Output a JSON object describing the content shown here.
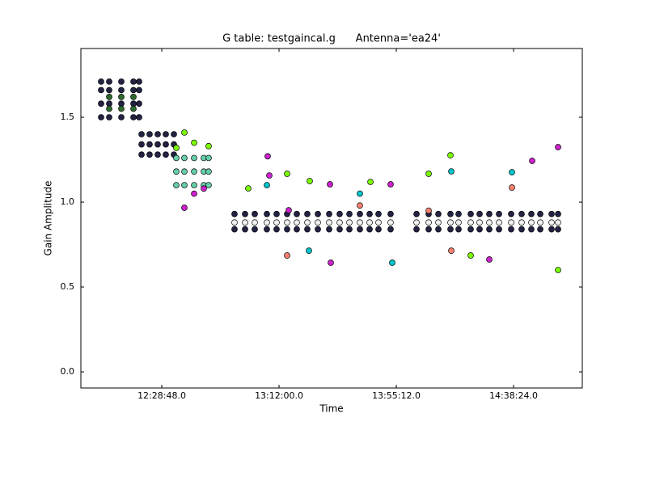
{
  "chart_data": {
    "type": "scatter",
    "title": "G table: testgaincal.g      Antenna='ea24'",
    "x_label": "Time",
    "y_label": "Gain Amplitude",
    "xlim": [
      43140,
      54223
    ],
    "ylim": [
      -0.095,
      1.905
    ],
    "xticks": [
      {
        "value": 44928,
        "label": "12:28:48.0"
      },
      {
        "value": 47520,
        "label": "13:12:00.0"
      },
      {
        "value": 50112,
        "label": "13:55:12.0"
      },
      {
        "value": 52704,
        "label": "14:38:24.0"
      }
    ],
    "yticks": [
      {
        "value": 0,
        "label": "0.0"
      },
      {
        "value": 0.5,
        "label": "0.5"
      },
      {
        "value": 1,
        "label": "1.0"
      },
      {
        "value": 1.5,
        "label": "1.5"
      }
    ],
    "series": [
      {
        "color": "#222244",
        "x": [
          43587,
          43766,
          44034,
          44302,
          44427,
          43587,
          43766,
          44034,
          44302,
          44427,
          43587,
          43766,
          44034,
          44302,
          44427,
          43587,
          43766,
          44034,
          44302,
          44427,
          44481,
          44659,
          44838,
          45017,
          45196,
          44481,
          44659,
          44838,
          45017,
          45196,
          44481,
          44659,
          44838,
          45017,
          45196,
          46536,
          46769,
          46983,
          47251,
          47466,
          47698,
          47913,
          48145,
          48378,
          48628,
          48860,
          49075,
          49307,
          49522,
          49718,
          49986,
          50559,
          50827,
          51041,
          51309,
          51488,
          51756,
          51953,
          52167,
          52382,
          52650,
          52882,
          53097,
          53294,
          53544,
          53687,
          46536,
          46769,
          46983,
          47251,
          47466,
          47698,
          47913,
          48145,
          48378,
          48628,
          48860,
          49075,
          49307,
          49522,
          49718,
          49986,
          50559,
          50827,
          51041,
          51309,
          51488,
          51756,
          51953,
          52167,
          52382,
          52650,
          52882,
          53097,
          53294,
          53544,
          53687
        ],
        "values": [
          1.5,
          1.5,
          1.5,
          1.5,
          1.5,
          1.58,
          1.58,
          1.58,
          1.58,
          1.58,
          1.66,
          1.66,
          1.66,
          1.66,
          1.66,
          1.71,
          1.71,
          1.71,
          1.71,
          1.71,
          1.28,
          1.28,
          1.28,
          1.28,
          1.28,
          1.34,
          1.34,
          1.34,
          1.34,
          1.34,
          1.4,
          1.4,
          1.4,
          1.4,
          1.4,
          0.84,
          0.84,
          0.84,
          0.84,
          0.84,
          0.84,
          0.84,
          0.84,
          0.84,
          0.84,
          0.84,
          0.84,
          0.84,
          0.84,
          0.84,
          0.84,
          0.84,
          0.84,
          0.84,
          0.84,
          0.84,
          0.84,
          0.84,
          0.84,
          0.84,
          0.84,
          0.84,
          0.84,
          0.84,
          0.84,
          0.84,
          0.93,
          0.93,
          0.93,
          0.93,
          0.93,
          0.93,
          0.93,
          0.93,
          0.93,
          0.93,
          0.93,
          0.93,
          0.93,
          0.93,
          0.93,
          0.93,
          0.93,
          0.93,
          0.93,
          0.93,
          0.93,
          0.93,
          0.93,
          0.93,
          0.93,
          0.93,
          0.93,
          0.93,
          0.93,
          0.93,
          0.93
        ]
      },
      {
        "color": "#f0f0f0",
        "x": [
          46536,
          46769,
          46983,
          47251,
          47466,
          47698,
          47913,
          48145,
          48378,
          48628,
          48860,
          49075,
          49307,
          49522,
          49718,
          49986,
          50559,
          50827,
          51041,
          51309,
          51488,
          51756,
          51953,
          52167,
          52382,
          52650,
          52882,
          53097,
          53294,
          53544,
          53687
        ],
        "values": [
          0.88,
          0.88,
          0.88,
          0.88,
          0.88,
          0.88,
          0.88,
          0.88,
          0.88,
          0.88,
          0.88,
          0.88,
          0.88,
          0.88,
          0.88,
          0.88,
          0.88,
          0.88,
          0.88,
          0.88,
          0.88,
          0.88,
          0.88,
          0.88,
          0.88,
          0.88,
          0.88,
          0.88,
          0.88,
          0.88,
          0.88
        ]
      },
      {
        "color": "#2e6b2e",
        "x": [
          43766,
          44034,
          44302,
          43766,
          44034,
          44302
        ],
        "values": [
          1.55,
          1.55,
          1.55,
          1.62,
          1.62,
          1.62
        ]
      },
      {
        "color": "#66cdaa",
        "x": [
          45249,
          45428,
          45643,
          45857,
          45964,
          45249,
          45428,
          45643,
          45857,
          45964,
          45249,
          45428,
          45643,
          45857,
          45964
        ],
        "values": [
          1.1,
          1.1,
          1.1,
          1.1,
          1.1,
          1.18,
          1.18,
          1.18,
          1.18,
          1.18,
          1.26,
          1.26,
          1.26,
          1.26,
          1.26
        ]
      },
      {
        "color": "#cc22cc",
        "x": [
          47269,
          47305,
          47734,
          48646,
          48664,
          49986,
          52167,
          53115,
          53687,
          45428,
          45643,
          45857
        ],
        "values": [
          1.27,
          1.157,
          0.952,
          1.105,
          0.643,
          1.105,
          0.662,
          1.243,
          1.324,
          0.967,
          1.05,
          1.08
        ]
      },
      {
        "color": "#7cfc00",
        "x": [
          51309,
          47698,
          53687,
          49540,
          48199,
          50827,
          46840,
          51756,
          45249,
          45643,
          45964,
          45428
        ],
        "values": [
          1.276,
          1.167,
          0.6,
          1.119,
          1.124,
          1.167,
          1.081,
          0.686,
          1.32,
          1.35,
          1.33,
          1.41
        ]
      },
      {
        "color": "#00c5cd",
        "x": [
          52668,
          50022,
          48181,
          51327,
          47251,
          49307
        ],
        "values": [
          1.176,
          0.643,
          0.714,
          1.181,
          1.1,
          1.05
        ]
      },
      {
        "color": "#fa8072",
        "x": [
          47698,
          51327,
          52668,
          49307,
          50827
        ],
        "values": [
          0.686,
          0.714,
          1.086,
          0.98,
          0.95
        ]
      }
    ]
  }
}
